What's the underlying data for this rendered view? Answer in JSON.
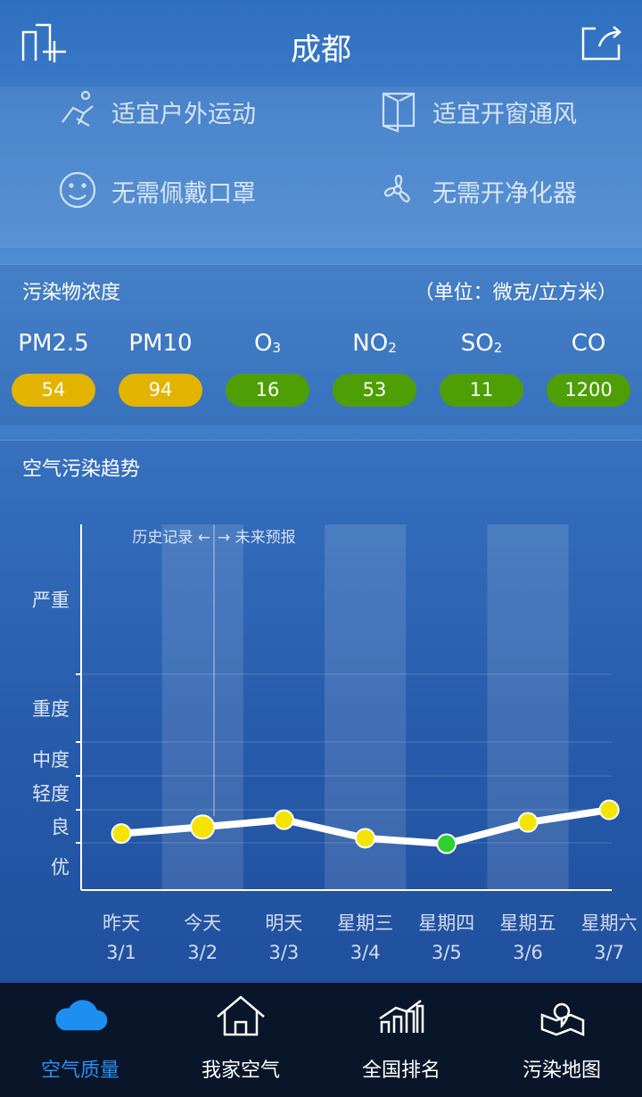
{
  "header": {
    "title": "成都"
  },
  "advice": [
    "适宜户外运动",
    "适宜开窗通风",
    "无需佩戴口罩",
    "无需开净化器"
  ],
  "pollutants": {
    "title": "污染物浓度",
    "unit": "（单位：微克/立方米）",
    "items": [
      {
        "name": "PM2.5",
        "value": 54,
        "color": "#e2b400"
      },
      {
        "name": "PM10",
        "value": 94,
        "color": "#e2b400"
      },
      {
        "name": "O",
        "sub": "3",
        "value": 16,
        "color": "#4e9e06"
      },
      {
        "name": "NO",
        "sub": "2",
        "value": 53,
        "color": "#4e9e06"
      },
      {
        "name": "SO",
        "sub": "2",
        "value": 11,
        "color": "#4e9e06"
      },
      {
        "name": "CO",
        "value": 1200,
        "color": "#4e9e06"
      }
    ]
  },
  "trend": {
    "title": "空气污染趋势",
    "past": "历史记录 ←",
    "future": "→ 未来预报",
    "levels": [
      "优",
      "良",
      "轻度",
      "中度",
      "重度",
      "严重"
    ],
    "ylim": [
      0,
      500
    ],
    "yticks": [
      50,
      100,
      150,
      200,
      300
    ],
    "days": [
      "昨天",
      "今天",
      "明天",
      "星期三",
      "星期四",
      "星期五",
      "星期六"
    ],
    "dates": [
      "3/1",
      "3/2",
      "3/3",
      "3/4",
      "3/5",
      "3/6",
      "3/7"
    ],
    "values": [
      64,
      74,
      85,
      57,
      49,
      81,
      100
    ],
    "colors": {
      "good": "#f5e400",
      "excellent": "#2ed12e"
    }
  },
  "nav": [
    "空气质量",
    "我家空气",
    "全国排名",
    "污染地图"
  ]
}
